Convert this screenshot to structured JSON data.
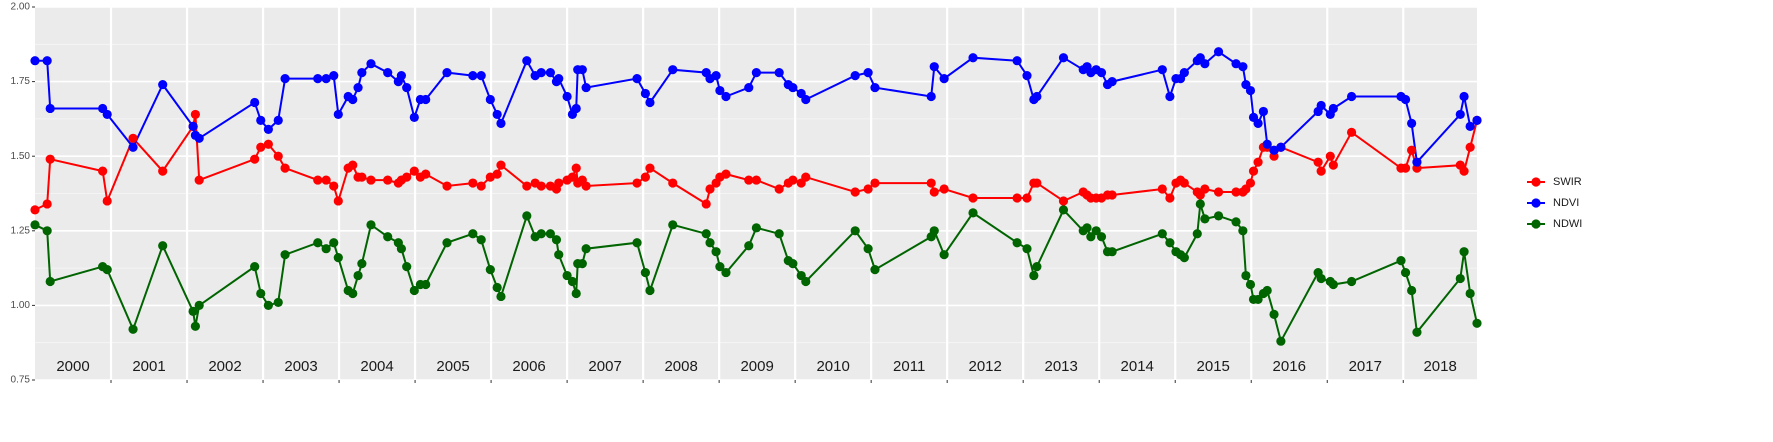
{
  "chart_data": {
    "type": "line",
    "x": [
      2000,
      2000.16,
      2000.2,
      2000.89,
      2000.95,
      2001.29,
      2001.68,
      2002.08,
      2002.11,
      2002.16,
      2002.89,
      2002.97,
      2003.07,
      2003.2,
      2003.29,
      2003.72,
      2003.83,
      2003.93,
      2003.99,
      2004.12,
      2004.18,
      2004.25,
      2004.3,
      2004.42,
      2004.64,
      2004.78,
      2004.82,
      2004.89,
      2004.99,
      2005.07,
      2005.14,
      2005.42,
      2005.76,
      2005.87,
      2005.99,
      2006.08,
      2006.13,
      2006.47,
      2006.58,
      2006.66,
      2006.78,
      2006.86,
      2006.89,
      2007,
      2007.07,
      2007.12,
      2007.14,
      2007.2,
      2007.25,
      2007.92,
      2008.03,
      2008.09,
      2008.39,
      2008.83,
      2008.88,
      2008.96,
      2009.01,
      2009.09,
      2009.39,
      2009.49,
      2009.79,
      2009.91,
      2009.97,
      2010.08,
      2010.14,
      2010.79,
      2010.96,
      2011.05,
      2011.79,
      2011.83,
      2011.96,
      2012.34,
      2012.92,
      2013.05,
      2013.14,
      2013.18,
      2013.53,
      2013.79,
      2013.84,
      2013.89,
      2013.96,
      2014.03,
      2014.11,
      2014.17,
      2014.83,
      2014.93,
      2015.01,
      2015.07,
      2015.12,
      2015.29,
      2015.33,
      2015.39,
      2015.57,
      2015.8,
      2015.89,
      2015.93,
      2015.99,
      2016.03,
      2016.09,
      2016.16,
      2016.21,
      2016.3,
      2016.39,
      2016.88,
      2016.92,
      2017.04,
      2017.08,
      2017.32,
      2017.97,
      2018.03,
      2018.11,
      2018.18,
      2018.75,
      2018.8,
      2018.88,
      2018.97
    ],
    "series": [
      {
        "name": "SWIR",
        "color": "#ff0000",
        "values": [
          1.32,
          1.34,
          1.49,
          1.45,
          1.35,
          1.56,
          1.45,
          1.6,
          1.64,
          1.42,
          1.49,
          1.53,
          1.54,
          1.5,
          1.46,
          1.42,
          1.42,
          1.4,
          1.35,
          1.46,
          1.47,
          1.43,
          1.43,
          1.42,
          1.42,
          1.41,
          1.42,
          1.43,
          1.45,
          1.43,
          1.44,
          1.4,
          1.41,
          1.4,
          1.43,
          1.44,
          1.47,
          1.4,
          1.41,
          1.4,
          1.4,
          1.39,
          1.41,
          1.42,
          1.43,
          1.46,
          1.41,
          1.42,
          1.4,
          1.41,
          1.43,
          1.46,
          1.41,
          1.34,
          1.39,
          1.41,
          1.43,
          1.44,
          1.42,
          1.42,
          1.39,
          1.41,
          1.42,
          1.41,
          1.43,
          1.38,
          1.39,
          1.41,
          1.41,
          1.38,
          1.39,
          1.36,
          1.36,
          1.36,
          1.41,
          1.41,
          1.35,
          1.38,
          1.37,
          1.36,
          1.36,
          1.36,
          1.37,
          1.37,
          1.39,
          1.36,
          1.41,
          1.42,
          1.41,
          1.38,
          1.37,
          1.39,
          1.38,
          1.38,
          1.38,
          1.39,
          1.41,
          1.45,
          1.48,
          1.53,
          1.53,
          1.5,
          1.53,
          1.48,
          1.45,
          1.5,
          1.47,
          1.58,
          1.46,
          1.46,
          1.52,
          1.46,
          1.47,
          1.45,
          1.53,
          1.62
        ]
      },
      {
        "name": "NDVI",
        "color": "#0000ff",
        "values": [
          1.82,
          1.82,
          1.66,
          1.66,
          1.64,
          1.53,
          1.74,
          1.6,
          1.57,
          1.56,
          1.68,
          1.62,
          1.59,
          1.62,
          1.76,
          1.76,
          1.76,
          1.77,
          1.64,
          1.7,
          1.69,
          1.73,
          1.78,
          1.81,
          1.78,
          1.75,
          1.77,
          1.73,
          1.63,
          1.69,
          1.69,
          1.78,
          1.77,
          1.77,
          1.69,
          1.64,
          1.61,
          1.82,
          1.77,
          1.78,
          1.78,
          1.75,
          1.76,
          1.7,
          1.64,
          1.66,
          1.79,
          1.79,
          1.73,
          1.76,
          1.71,
          1.68,
          1.79,
          1.78,
          1.76,
          1.77,
          1.72,
          1.7,
          1.73,
          1.78,
          1.78,
          1.74,
          1.73,
          1.71,
          1.69,
          1.77,
          1.78,
          1.73,
          1.7,
          1.8,
          1.76,
          1.83,
          1.82,
          1.77,
          1.69,
          1.7,
          1.83,
          1.79,
          1.8,
          1.78,
          1.79,
          1.78,
          1.74,
          1.75,
          1.79,
          1.7,
          1.76,
          1.76,
          1.78,
          1.82,
          1.83,
          1.81,
          1.85,
          1.81,
          1.8,
          1.74,
          1.72,
          1.63,
          1.61,
          1.65,
          1.54,
          1.52,
          1.53,
          1.65,
          1.67,
          1.64,
          1.66,
          1.7,
          1.7,
          1.69,
          1.61,
          1.48,
          1.64,
          1.7,
          1.6,
          1.62
        ]
      },
      {
        "name": "NDWI",
        "color": "#006400",
        "values": [
          1.27,
          1.25,
          1.08,
          1.13,
          1.12,
          0.92,
          1.2,
          0.98,
          0.93,
          1,
          1.13,
          1.04,
          1,
          1.01,
          1.17,
          1.21,
          1.19,
          1.21,
          1.16,
          1.05,
          1.04,
          1.1,
          1.14,
          1.27,
          1.23,
          1.21,
          1.19,
          1.13,
          1.05,
          1.07,
          1.07,
          1.21,
          1.24,
          1.22,
          1.12,
          1.06,
          1.03,
          1.3,
          1.23,
          1.24,
          1.24,
          1.22,
          1.17,
          1.1,
          1.08,
          1.04,
          1.14,
          1.14,
          1.19,
          1.21,
          1.11,
          1.05,
          1.27,
          1.24,
          1.21,
          1.18,
          1.13,
          1.11,
          1.2,
          1.26,
          1.24,
          1.15,
          1.14,
          1.1,
          1.08,
          1.25,
          1.19,
          1.12,
          1.23,
          1.25,
          1.17,
          1.31,
          1.21,
          1.19,
          1.1,
          1.13,
          1.32,
          1.25,
          1.26,
          1.23,
          1.25,
          1.23,
          1.18,
          1.18,
          1.24,
          1.21,
          1.18,
          1.17,
          1.16,
          1.24,
          1.34,
          1.29,
          1.3,
          1.28,
          1.25,
          1.1,
          1.07,
          1.02,
          1.02,
          1.04,
          1.05,
          0.97,
          0.88,
          1.11,
          1.09,
          1.08,
          1.07,
          1.08,
          1.15,
          1.11,
          1.05,
          0.91,
          1.09,
          1.18,
          1.04,
          0.94
        ]
      }
    ],
    "xlim": [
      2000,
      2018.97
    ],
    "xticks": [
      2001,
      2002,
      2003,
      2004,
      2005,
      2006,
      2007,
      2008,
      2009,
      2010,
      2011,
      2012,
      2013,
      2014,
      2015,
      2016,
      2017,
      2018
    ],
    "year_labels": [
      "2000",
      "2001",
      "2002",
      "2003",
      "2004",
      "2005",
      "2006",
      "2007",
      "2008",
      "2009",
      "2010",
      "2011",
      "2012",
      "2013",
      "2014",
      "2015",
      "2016",
      "2017",
      "2018"
    ],
    "ylim": [
      0.75,
      2.0
    ],
    "yticks": [
      {
        "value": 0.75,
        "label": "0.75"
      },
      {
        "value": 1.0,
        "label": "1.00"
      },
      {
        "value": 1.25,
        "label": "1.25"
      },
      {
        "value": 1.5,
        "label": "1.50"
      },
      {
        "value": 1.75,
        "label": "1.75"
      },
      {
        "value": 2.0,
        "label": "2.00"
      }
    ],
    "grid": true,
    "legend": "right"
  }
}
